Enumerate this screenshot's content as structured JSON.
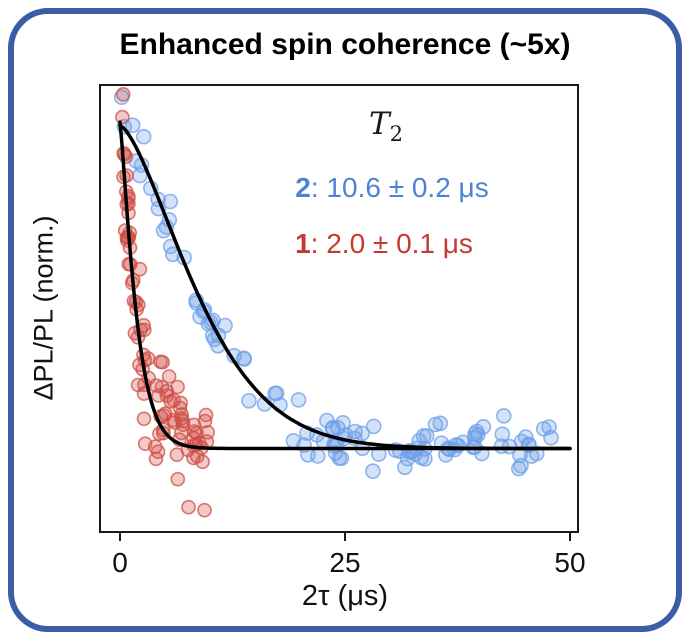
{
  "card": {
    "border_color": "#3a5ca9",
    "background": "#ffffff"
  },
  "title": "Enhanced spin coherence (~5x)",
  "annotation": {
    "t2_base": "T",
    "t2_sub": "2"
  },
  "legend": {
    "series2_name": "2",
    "series2_value": ": 10.6 ± 0.2 μs",
    "series2_color": "#4e82d6",
    "series1_name": "1",
    "series1_value": ": 2.0 ± 0.1 μs",
    "series1_color": "#c53a2f"
  },
  "chart_data": {
    "type": "scatter",
    "title": "Enhanced spin coherence (~5x)",
    "xlabel": "2τ (μs)",
    "ylabel": "ΔPL/PL (norm.)",
    "xlim": [
      0,
      50
    ],
    "ylim": [
      -0.125,
      1.08
    ],
    "xticks": [
      0,
      25,
      50
    ],
    "grid": false,
    "legend_position": "upper right inside",
    "fit_color": "#000000",
    "series": [
      {
        "name": "2",
        "T2_us": 10.6,
        "T2_err_us": 0.2,
        "label": "2: 10.6 ± 0.2 μs",
        "marker_color": "#6c9fe8",
        "model": "stretched_exponential",
        "amplitude": 0.87,
        "baseline": 0.1,
        "beta": 1.5,
        "n_points": 115,
        "x_min": 0.0,
        "x_max": 50,
        "x_pow": 1.25,
        "noise_sd": 0.034,
        "seed": 7,
        "marker_r": 7
      },
      {
        "name": "1",
        "T2_us": 2.0,
        "T2_err_us": 0.1,
        "label": "1: 2.0 ± 0.1 μs",
        "marker_color": "#cf4c44",
        "model": "stretched_exponential",
        "amplitude": 0.88,
        "baseline": 0.1,
        "beta": 1.2,
        "n_points": 95,
        "x_min": 0.2,
        "x_max": 9.8,
        "x_pow": 1.35,
        "noise_sd": 0.085,
        "seed": 13,
        "marker_r": 6.5
      }
    ]
  }
}
